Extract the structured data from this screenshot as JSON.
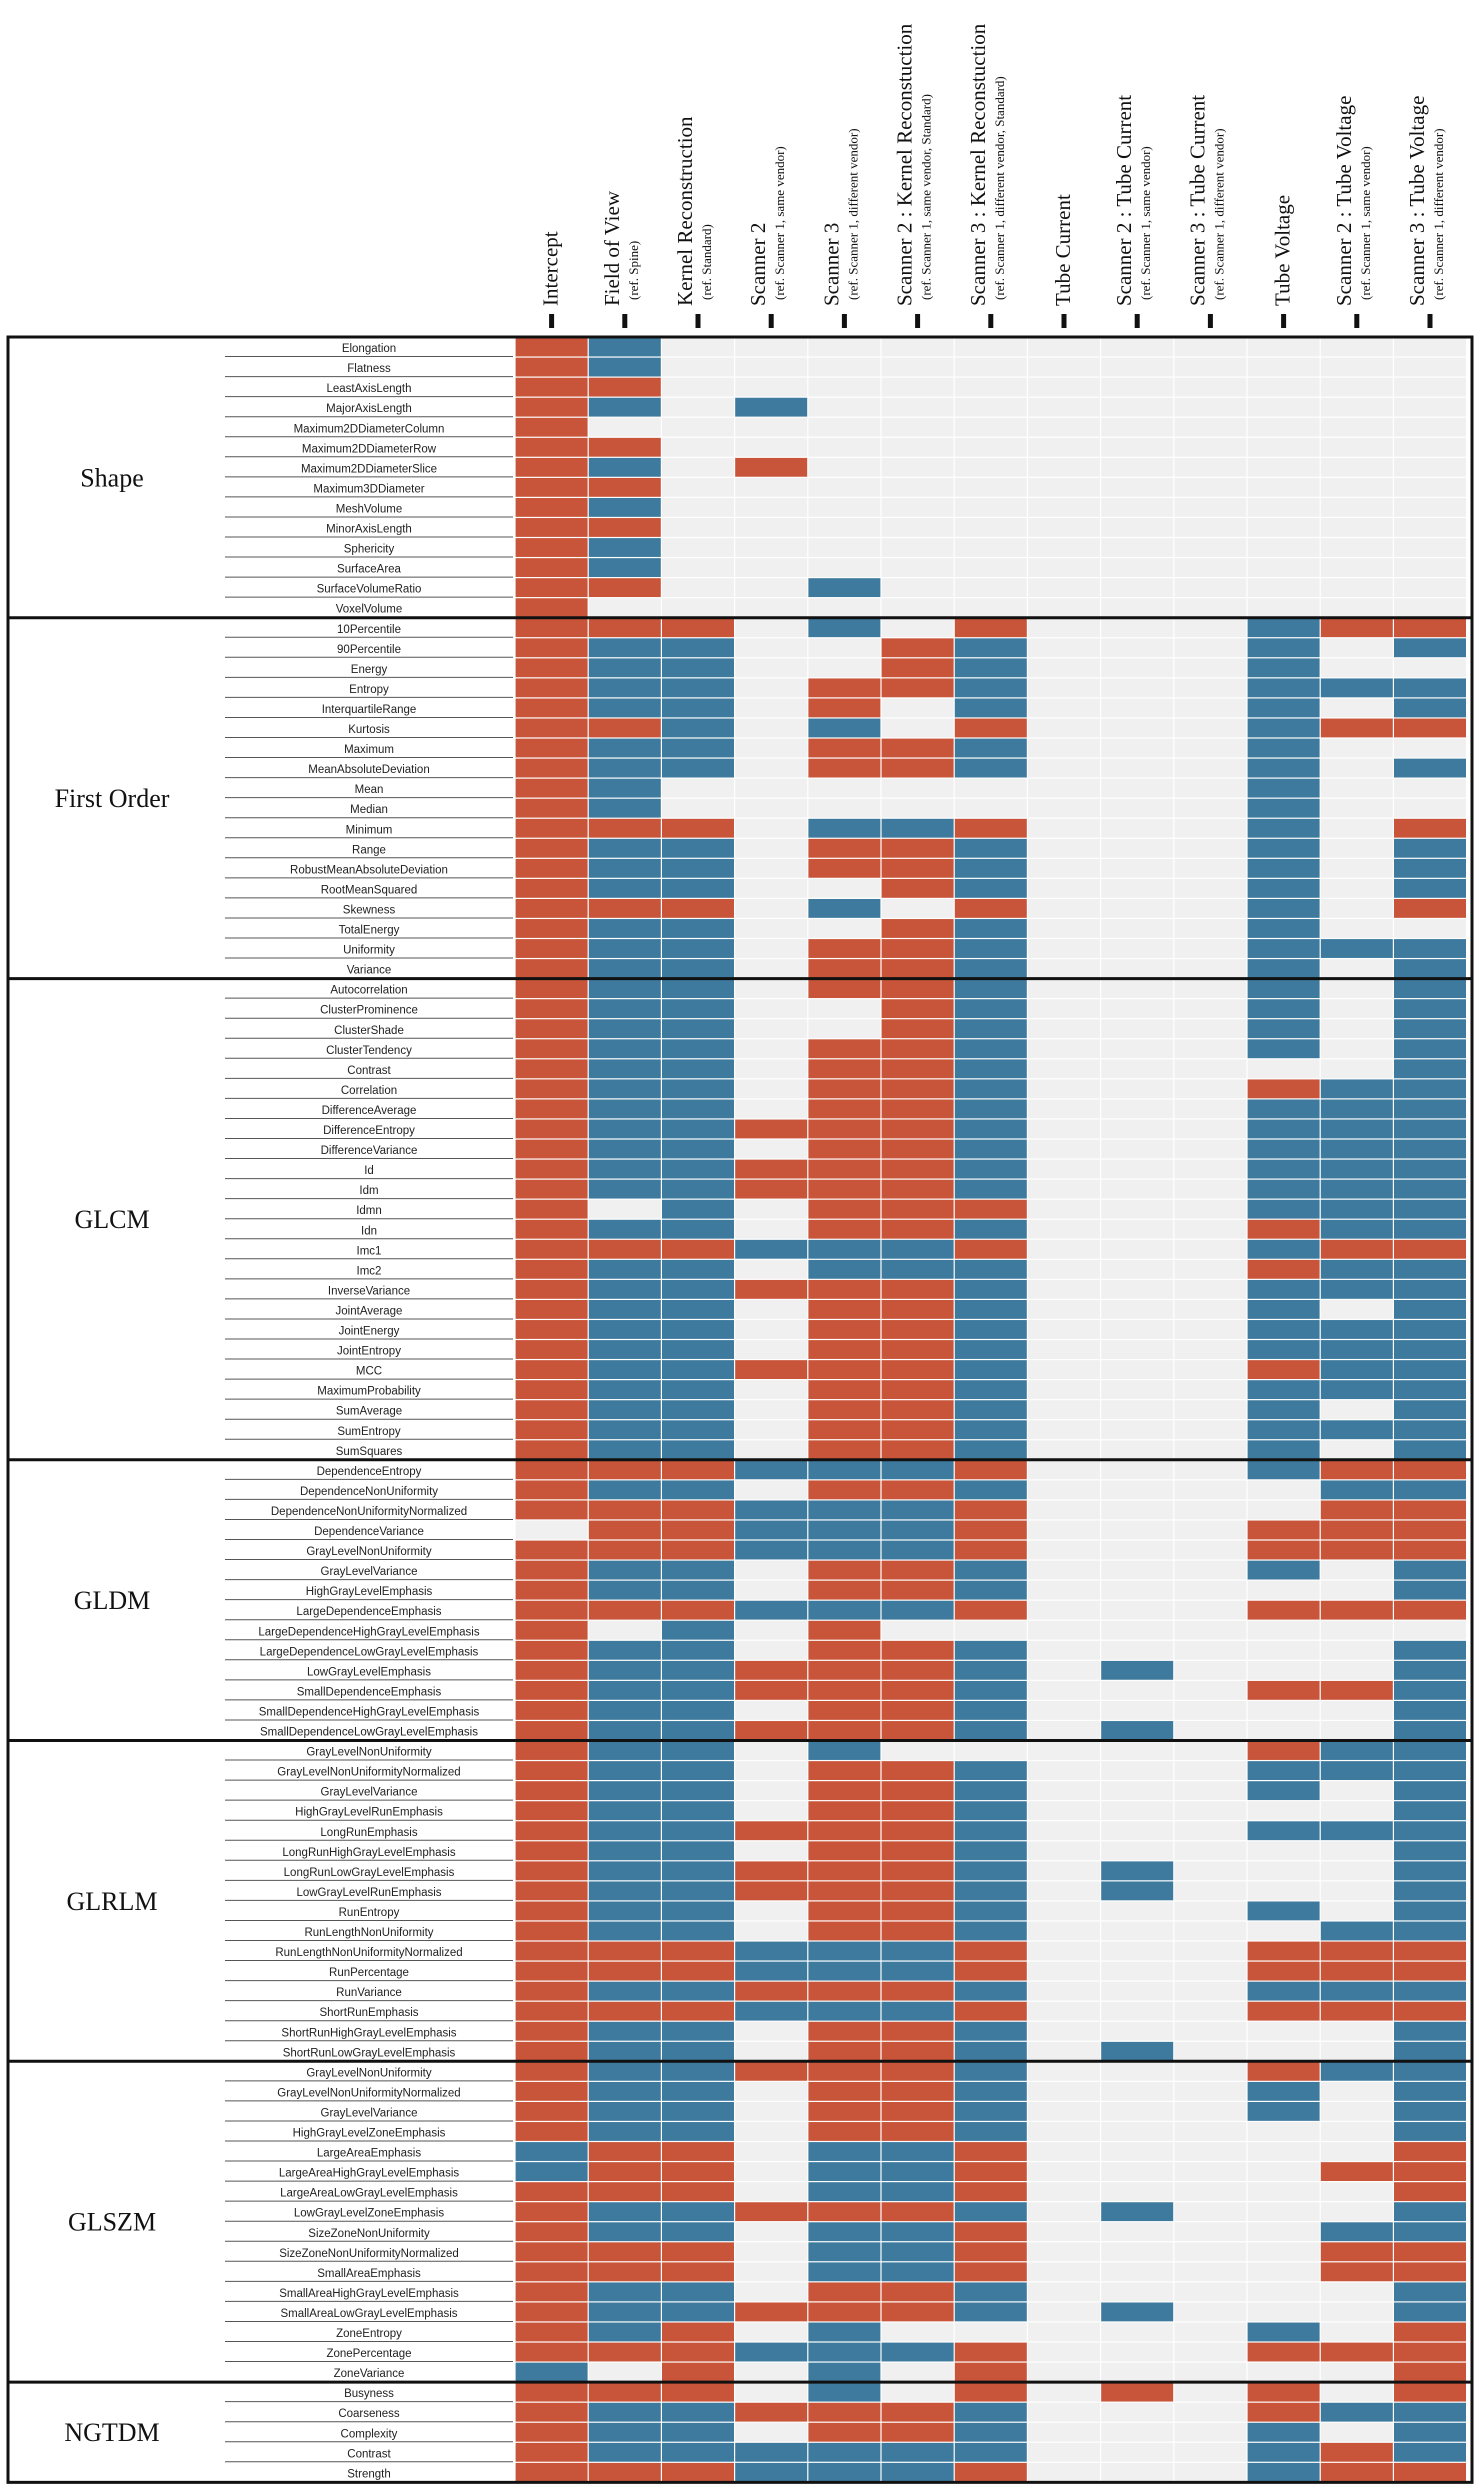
{
  "chart_data": {
    "type": "heatmap",
    "title": "",
    "legend": {
      "positive_color": "#c8553a",
      "negative_color": "#3d7a9e",
      "empty_color": "#f0f0f0"
    },
    "columns": [
      {
        "label": "Intercept",
        "sub": ""
      },
      {
        "label": "Field of View",
        "sub": "(ref. Spine)"
      },
      {
        "label": "Kernel Reconstruction",
        "sub": "(ref. Standard)"
      },
      {
        "label": "Scanner 2",
        "sub": "(ref. Scanner 1, same vendor)"
      },
      {
        "label": "Scanner 3",
        "sub": "(ref. Scanner 1, different vendor)"
      },
      {
        "label": "Scanner 2 : Kernel Reconstuction",
        "sub": "(ref. Scanner 1, same vendor, Standard)"
      },
      {
        "label": "Scanner 3 : Kernel Reconstuction",
        "sub": "(ref. Scanner 1, different vendor, Standard)"
      },
      {
        "label": "Tube Current",
        "sub": ""
      },
      {
        "label": "Scanner 2 : Tube Current",
        "sub": "(ref. Scanner 1, same vendor)"
      },
      {
        "label": "Scanner 3 : Tube Current",
        "sub": "(ref. Scanner 1, different vendor)"
      },
      {
        "label": "Tube Voltage",
        "sub": ""
      },
      {
        "label": "Scanner 2 : Tube Voltage",
        "sub": "(ref. Scanner 1, same vendor)"
      },
      {
        "label": "Scanner 3 : Tube Voltage",
        "sub": "(ref. Scanner 1, different vendor)"
      }
    ],
    "groups": [
      {
        "name": "Shape",
        "rows": [
          {
            "label": "Elongation",
            "values": "RB..........."
          },
          {
            "label": "Flatness",
            "values": "RB..........."
          },
          {
            "label": "LeastAxisLength",
            "values": "RR..........."
          },
          {
            "label": "MajorAxisLength",
            "values": "RB.B........."
          },
          {
            "label": "Maximum2DDiameterColumn",
            "values": "R............"
          },
          {
            "label": "Maximum2DDiameterRow",
            "values": "RR..........."
          },
          {
            "label": "Maximum2DDiameterSlice",
            "values": "RB.R........."
          },
          {
            "label": "Maximum3DDiameter",
            "values": "RR..........."
          },
          {
            "label": "MeshVolume",
            "values": "RB..........."
          },
          {
            "label": "MinorAxisLength",
            "values": "RR..........."
          },
          {
            "label": "Sphericity",
            "values": "RB..........."
          },
          {
            "label": "SurfaceArea",
            "values": "RB..........."
          },
          {
            "label": "SurfaceVolumeRatio",
            "values": "RR..B........"
          },
          {
            "label": "VoxelVolume",
            "values": "R............"
          }
        ]
      },
      {
        "name": "First Order",
        "rows": [
          {
            "label": "10Percentile",
            "values": "RRR.B.R...BRR"
          },
          {
            "label": "90Percentile",
            "values": "RBB..RB...B.B"
          },
          {
            "label": "Energy",
            "values": "RBB..RB...B.."
          },
          {
            "label": "Entropy",
            "values": "RBB.RRB...BBB"
          },
          {
            "label": "InterquartileRange",
            "values": "RBB.R.B...B.B"
          },
          {
            "label": "Kurtosis",
            "values": "RRB.B.R...BRR"
          },
          {
            "label": "Maximum",
            "values": "RBB.RRB...B.."
          },
          {
            "label": "MeanAbsoluteDeviation",
            "values": "RBB.RRB...B.B"
          },
          {
            "label": "Mean",
            "values": "RB........B.."
          },
          {
            "label": "Median",
            "values": "RB........B.."
          },
          {
            "label": "Minimum",
            "values": "RRR.BBR...B.R"
          },
          {
            "label": "Range",
            "values": "RBB.RRB...B.B"
          },
          {
            "label": "RobustMeanAbsoluteDeviation",
            "values": "RBB.RRB...B.B"
          },
          {
            "label": "RootMeanSquared",
            "values": "RBB..RB...B.B"
          },
          {
            "label": "Skewness",
            "values": "RRR.B.R...B.R"
          },
          {
            "label": "TotalEnergy",
            "values": "RBB..RB...B.."
          },
          {
            "label": "Uniformity",
            "values": "RBB.RRB...BBB"
          },
          {
            "label": "Variance",
            "values": "RBB.RRB...B.B"
          }
        ]
      },
      {
        "name": "GLCM",
        "rows": [
          {
            "label": "Autocorrelation",
            "values": "RBB.RRB...B.B"
          },
          {
            "label": "ClusterProminence",
            "values": "RBB..RB...B.B"
          },
          {
            "label": "ClusterShade",
            "values": "RBB..RB...B.B"
          },
          {
            "label": "ClusterTendency",
            "values": "RBB.RRB...B.B"
          },
          {
            "label": "Contrast",
            "values": "RBB.RRB.....B"
          },
          {
            "label": "Correlation",
            "values": "RBB.RRB...RBB"
          },
          {
            "label": "DifferenceAverage",
            "values": "RBB.RRB...BBB"
          },
          {
            "label": "DifferenceEntropy",
            "values": "RBBRRRB...BBB"
          },
          {
            "label": "DifferenceVariance",
            "values": "RBB.RRB...BBB"
          },
          {
            "label": "Id",
            "values": "RBBRRRB...BBB"
          },
          {
            "label": "Idm",
            "values": "RBBRRRB...BBB"
          },
          {
            "label": "Idmn",
            "values": "R.B.RRR...BBB"
          },
          {
            "label": "Idn",
            "values": "RBB.RRB...RBB"
          },
          {
            "label": "Imc1",
            "values": "RRRBBBR...BRR"
          },
          {
            "label": "Imc2",
            "values": "RBB.BBB...RBB"
          },
          {
            "label": "InverseVariance",
            "values": "RBBRRRB...BBB"
          },
          {
            "label": "JointAverage",
            "values": "RBB.RRB...B.B"
          },
          {
            "label": "JointEnergy",
            "values": "RBB.RRB...BBB"
          },
          {
            "label": "JointEntropy",
            "values": "RBB.RRB...BBB"
          },
          {
            "label": "MCC",
            "values": "RBBRRRB...RBB"
          },
          {
            "label": "MaximumProbability",
            "values": "RBB.RRB...BBB"
          },
          {
            "label": "SumAverage",
            "values": "RBB.RRB...B.B"
          },
          {
            "label": "SumEntropy",
            "values": "RBB.RRB...BBB"
          },
          {
            "label": "SumSquares",
            "values": "RBB.RRB...B.B"
          }
        ]
      },
      {
        "name": "GLDM",
        "rows": [
          {
            "label": "DependenceEntropy",
            "values": "RRRBBBR...BRR"
          },
          {
            "label": "DependenceNonUniformity",
            "values": "RBB.RRB....BB"
          },
          {
            "label": "DependenceNonUniformityNormalized",
            "values": "RRRBBBR....RR"
          },
          {
            "label": "DependenceVariance",
            "values": ".RRBBBR...RRR"
          },
          {
            "label": "GrayLevelNonUniformity",
            "values": "RRRBBBR...RRR"
          },
          {
            "label": "GrayLevelVariance",
            "values": "RBB.RRB...B.B"
          },
          {
            "label": "HighGrayLevelEmphasis",
            "values": "RBB.RRB.....B"
          },
          {
            "label": "LargeDependenceEmphasis",
            "values": "RRRBBBR...RRR"
          },
          {
            "label": "LargeDependenceHighGrayLevelEmphasis",
            "values": "R.B.R........"
          },
          {
            "label": "LargeDependenceLowGrayLevelEmphasis",
            "values": "RBB.RRB.....B"
          },
          {
            "label": "LowGrayLevelEmphasis",
            "values": "RBBRRRB.B...B"
          },
          {
            "label": "SmallDependenceEmphasis",
            "values": "RBBRRRB...RRB"
          },
          {
            "label": "SmallDependenceHighGrayLevelEmphasis",
            "values": "RBB.RRB.....B"
          },
          {
            "label": "SmallDependenceLowGrayLevelEmphasis",
            "values": "RBBRRRB.B...B"
          }
        ]
      },
      {
        "name": "GLRLM",
        "rows": [
          {
            "label": "GrayLevelNonUniformity",
            "values": "RBB.B.....RBB"
          },
          {
            "label": "GrayLevelNonUniformityNormalized",
            "values": "RBB.RRB...BBB"
          },
          {
            "label": "GrayLevelVariance",
            "values": "RBB.RRB...B.B"
          },
          {
            "label": "HighGrayLevelRunEmphasis",
            "values": "RBB.RRB.....B"
          },
          {
            "label": "LongRunEmphasis",
            "values": "RBBRRRB...BBB"
          },
          {
            "label": "LongRunHighGrayLevelEmphasis",
            "values": "RBB.RRB.....B"
          },
          {
            "label": "LongRunLowGrayLevelEmphasis",
            "values": "RBBRRRB.B...B"
          },
          {
            "label": "LowGrayLevelRunEmphasis",
            "values": "RBBRRRB.B...B"
          },
          {
            "label": "RunEntropy",
            "values": "RBB.RRB...B.B"
          },
          {
            "label": "RunLengthNonUniformity",
            "values": "RBB.RRB....BB"
          },
          {
            "label": "RunLengthNonUniformityNormalized",
            "values": "RRRBBBR...RRR"
          },
          {
            "label": "RunPercentage",
            "values": "RRRBBBR...RRR"
          },
          {
            "label": "RunVariance",
            "values": "RBBRRRB...BBB"
          },
          {
            "label": "ShortRunEmphasis",
            "values": "RRRBBBR...RRR"
          },
          {
            "label": "ShortRunHighGrayLevelEmphasis",
            "values": "RBB.RRB.....B"
          },
          {
            "label": "ShortRunLowGrayLevelEmphasis",
            "values": "RBB.RRB.B...B"
          }
        ]
      },
      {
        "name": "GLSZM",
        "rows": [
          {
            "label": "GrayLevelNonUniformity",
            "values": "RBBRRRB...RBB"
          },
          {
            "label": "GrayLevelNonUniformityNormalized",
            "values": "RBB.RRB...B.B"
          },
          {
            "label": "GrayLevelVariance",
            "values": "RBB.RRB...B.B"
          },
          {
            "label": "HighGrayLevelZoneEmphasis",
            "values": "RBB.RRB.....B"
          },
          {
            "label": "LargeAreaEmphasis",
            "values": "BRR.BBR.....R"
          },
          {
            "label": "LargeAreaHighGrayLevelEmphasis",
            "values": "BRR.BBR....RR"
          },
          {
            "label": "LargeAreaLowGrayLevelEmphasis",
            "values": "RRR.BBR.....R"
          },
          {
            "label": "LowGrayLevelZoneEmphasis",
            "values": "RBBRRRB.B...B"
          },
          {
            "label": "SizeZoneNonUniformity",
            "values": "RBB.BBR....BB"
          },
          {
            "label": "SizeZoneNonUniformityNormalized",
            "values": "RRR.BBR....RR"
          },
          {
            "label": "SmallAreaEmphasis",
            "values": "RRR.BBR....RR"
          },
          {
            "label": "SmallAreaHighGrayLevelEmphasis",
            "values": "RBB.RRB.....B"
          },
          {
            "label": "SmallAreaLowGrayLevelEmphasis",
            "values": "RBBRRRB.B...B"
          },
          {
            "label": "ZoneEntropy",
            "values": "RBR.B.....B.R"
          },
          {
            "label": "ZonePercentage",
            "values": "RRRBBBR...RRR"
          },
          {
            "label": "ZoneVariance",
            "values": "B.R.B.R.....R"
          }
        ]
      },
      {
        "name": "NGTDM",
        "rows": [
          {
            "label": "Busyness",
            "values": "RRR.B.R.R.R.R"
          },
          {
            "label": "Coarseness",
            "values": "RBBRRRB...RBB"
          },
          {
            "label": "Complexity",
            "values": "RBB.RRB...B.B"
          },
          {
            "label": "Contrast",
            "values": "RBBBBBB...BRB"
          },
          {
            "label": "Strength",
            "values": "RRRBBBR...BRR"
          }
        ]
      }
    ]
  }
}
